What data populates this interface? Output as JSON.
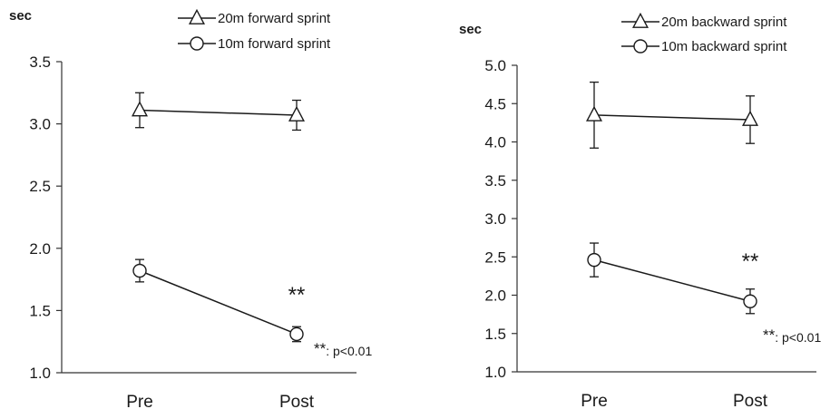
{
  "chart_data": [
    {
      "type": "line",
      "title": "",
      "xlabel": "",
      "ylabel": "sec",
      "ylim": [
        1.0,
        3.5
      ],
      "yticks": [
        "1.0",
        "1.5",
        "2.0",
        "2.5",
        "3.0",
        "3.5"
      ],
      "categories": [
        "Pre",
        "Post"
      ],
      "series": [
        {
          "name": "20m forward sprint",
          "marker": "triangle",
          "values": [
            3.11,
            3.07
          ],
          "errors": [
            0.14,
            0.12
          ]
        },
        {
          "name": "10m forward sprint",
          "marker": "circle",
          "values": [
            1.82,
            1.31
          ],
          "errors": [
            0.09,
            0.06
          ]
        }
      ],
      "significance_marker": {
        "text": "**",
        "category": "Post"
      },
      "footnote": {
        "stars": "**",
        "text": ": p<0.01"
      },
      "legend_position": "top",
      "grid": false
    },
    {
      "type": "line",
      "title": "",
      "xlabel": "",
      "ylabel": "sec",
      "ylim": [
        1.0,
        5.0
      ],
      "yticks": [
        "1.0",
        "1.5",
        "2.0",
        "2.5",
        "3.0",
        "3.5",
        "4.0",
        "4.5",
        "5.0"
      ],
      "categories": [
        "Pre",
        "Post"
      ],
      "series": [
        {
          "name": "20m backward sprint",
          "marker": "triangle",
          "values": [
            4.35,
            4.29
          ],
          "errors": [
            0.43,
            0.31
          ]
        },
        {
          "name": "10m backward sprint",
          "marker": "circle",
          "values": [
            2.46,
            1.92
          ],
          "errors": [
            0.22,
            0.16
          ]
        }
      ],
      "significance_marker": {
        "text": "**",
        "category": "Post"
      },
      "footnote": {
        "stars": "**",
        "text": ": p<0.01"
      },
      "legend_position": "top",
      "grid": false
    }
  ]
}
